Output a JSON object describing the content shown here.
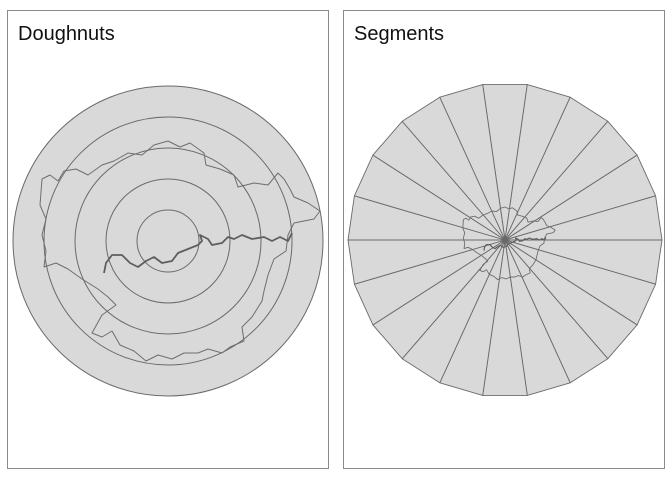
{
  "panels": [
    {
      "title": "Doughnuts",
      "kind": "doughnuts",
      "ring_count": 5
    },
    {
      "title": "Segments",
      "kind": "segments",
      "segment_count": 22
    }
  ],
  "colors": {
    "fill": "#d9d9d9",
    "stroke": "#6a6a6a",
    "boundary": "#6e6e6e",
    "river": "#5e5e5e",
    "frame": "#8a8a8a"
  }
}
